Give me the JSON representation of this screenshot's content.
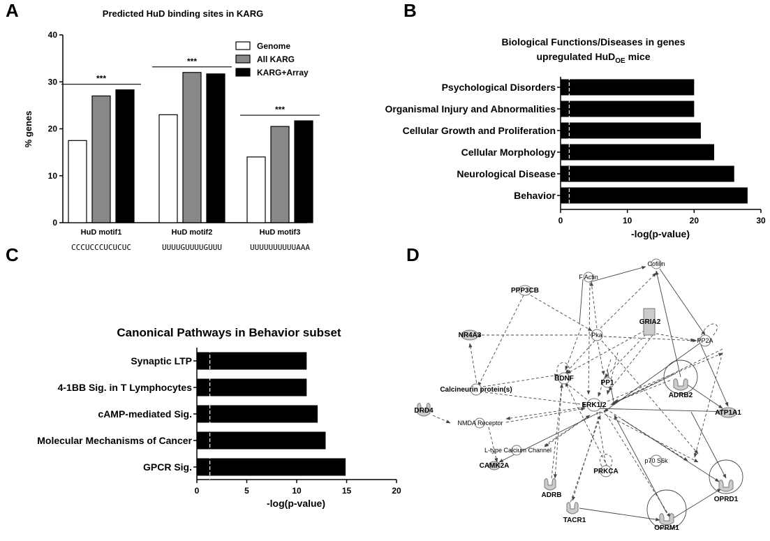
{
  "panels": {
    "a": "A",
    "b": "B",
    "c": "C",
    "d": "D"
  },
  "chart_data": [
    {
      "type": "bar",
      "title": "Predicted HuD binding sites in KARG",
      "ylabel": "% genes",
      "ylim": [
        0,
        40
      ],
      "yticks": [
        0,
        10,
        20,
        30,
        40
      ],
      "categories": [
        "HuD motif1",
        "HuD motif2",
        "HuD motif3"
      ],
      "sequences": [
        "CCCUCCCUCUCUC",
        "UUUUGUUUUGUUU",
        "UUUUUUUUUUAAA"
      ],
      "series": [
        {
          "name": "Genome",
          "values": [
            17.5,
            23,
            14
          ],
          "color": "#ffffff"
        },
        {
          "name": "All KARG",
          "values": [
            27,
            32,
            20.5
          ],
          "color": "#888888"
        },
        {
          "name": "KARG+Array",
          "values": [
            28.3,
            31.7,
            21.7
          ],
          "color": "#000000"
        }
      ],
      "significance": [
        "***",
        "***",
        "***"
      ],
      "legend_position": "top-right"
    },
    {
      "type": "bar",
      "orientation": "horizontal",
      "title_line1": "Biological Functions/Diseases in genes",
      "title_line2_pre": "upregulated HuD",
      "title_line2_sub": "OE",
      "title_line2_post": " mice",
      "categories": [
        "Psychological Disorders",
        "Organismal Injury and Abnormalities",
        "Cellular Growth and Proliferation",
        "Cellular Morphology",
        "Neurological Disease",
        "Behavior"
      ],
      "values": [
        20,
        20,
        21,
        23,
        26,
        28
      ],
      "xlabel": "-log(p-value)",
      "xlim": [
        0,
        30
      ],
      "xticks": [
        0,
        10,
        20,
        30
      ],
      "threshold": 1.3
    },
    {
      "type": "bar",
      "orientation": "horizontal",
      "title": "Canonical Pathways in Behavior subset",
      "categories": [
        "Synaptic LTP",
        "4-1BB Sig. in T Lymphocytes",
        "cAMP-mediated Sig.",
        "Molecular Mechanisms of Cancer",
        "GPCR Sig."
      ],
      "values": [
        11,
        11,
        12.1,
        12.9,
        14.9
      ],
      "xlabel": "-log(p-value)",
      "xlim": [
        0,
        20
      ],
      "xticks": [
        0,
        5,
        10,
        15,
        20
      ],
      "threshold": 1.3
    }
  ],
  "network": {
    "nodes": [
      "Cofilin",
      "F Actin",
      "PPP3CB",
      "NR4A3",
      "Pka",
      "GRIA2",
      "PP2A",
      "BDNF",
      "Calcineurin protein(s)",
      "PP1",
      "ADRB2",
      "DRD4",
      "NMDA Receptor",
      "ERK1/2",
      "ATP1A1",
      "L-type Calcium Channel",
      "p70 S6k",
      "CAMK2A",
      "PRKCA",
      "ADRB",
      "OPRD1",
      "TACR1",
      "OPRM1"
    ]
  }
}
